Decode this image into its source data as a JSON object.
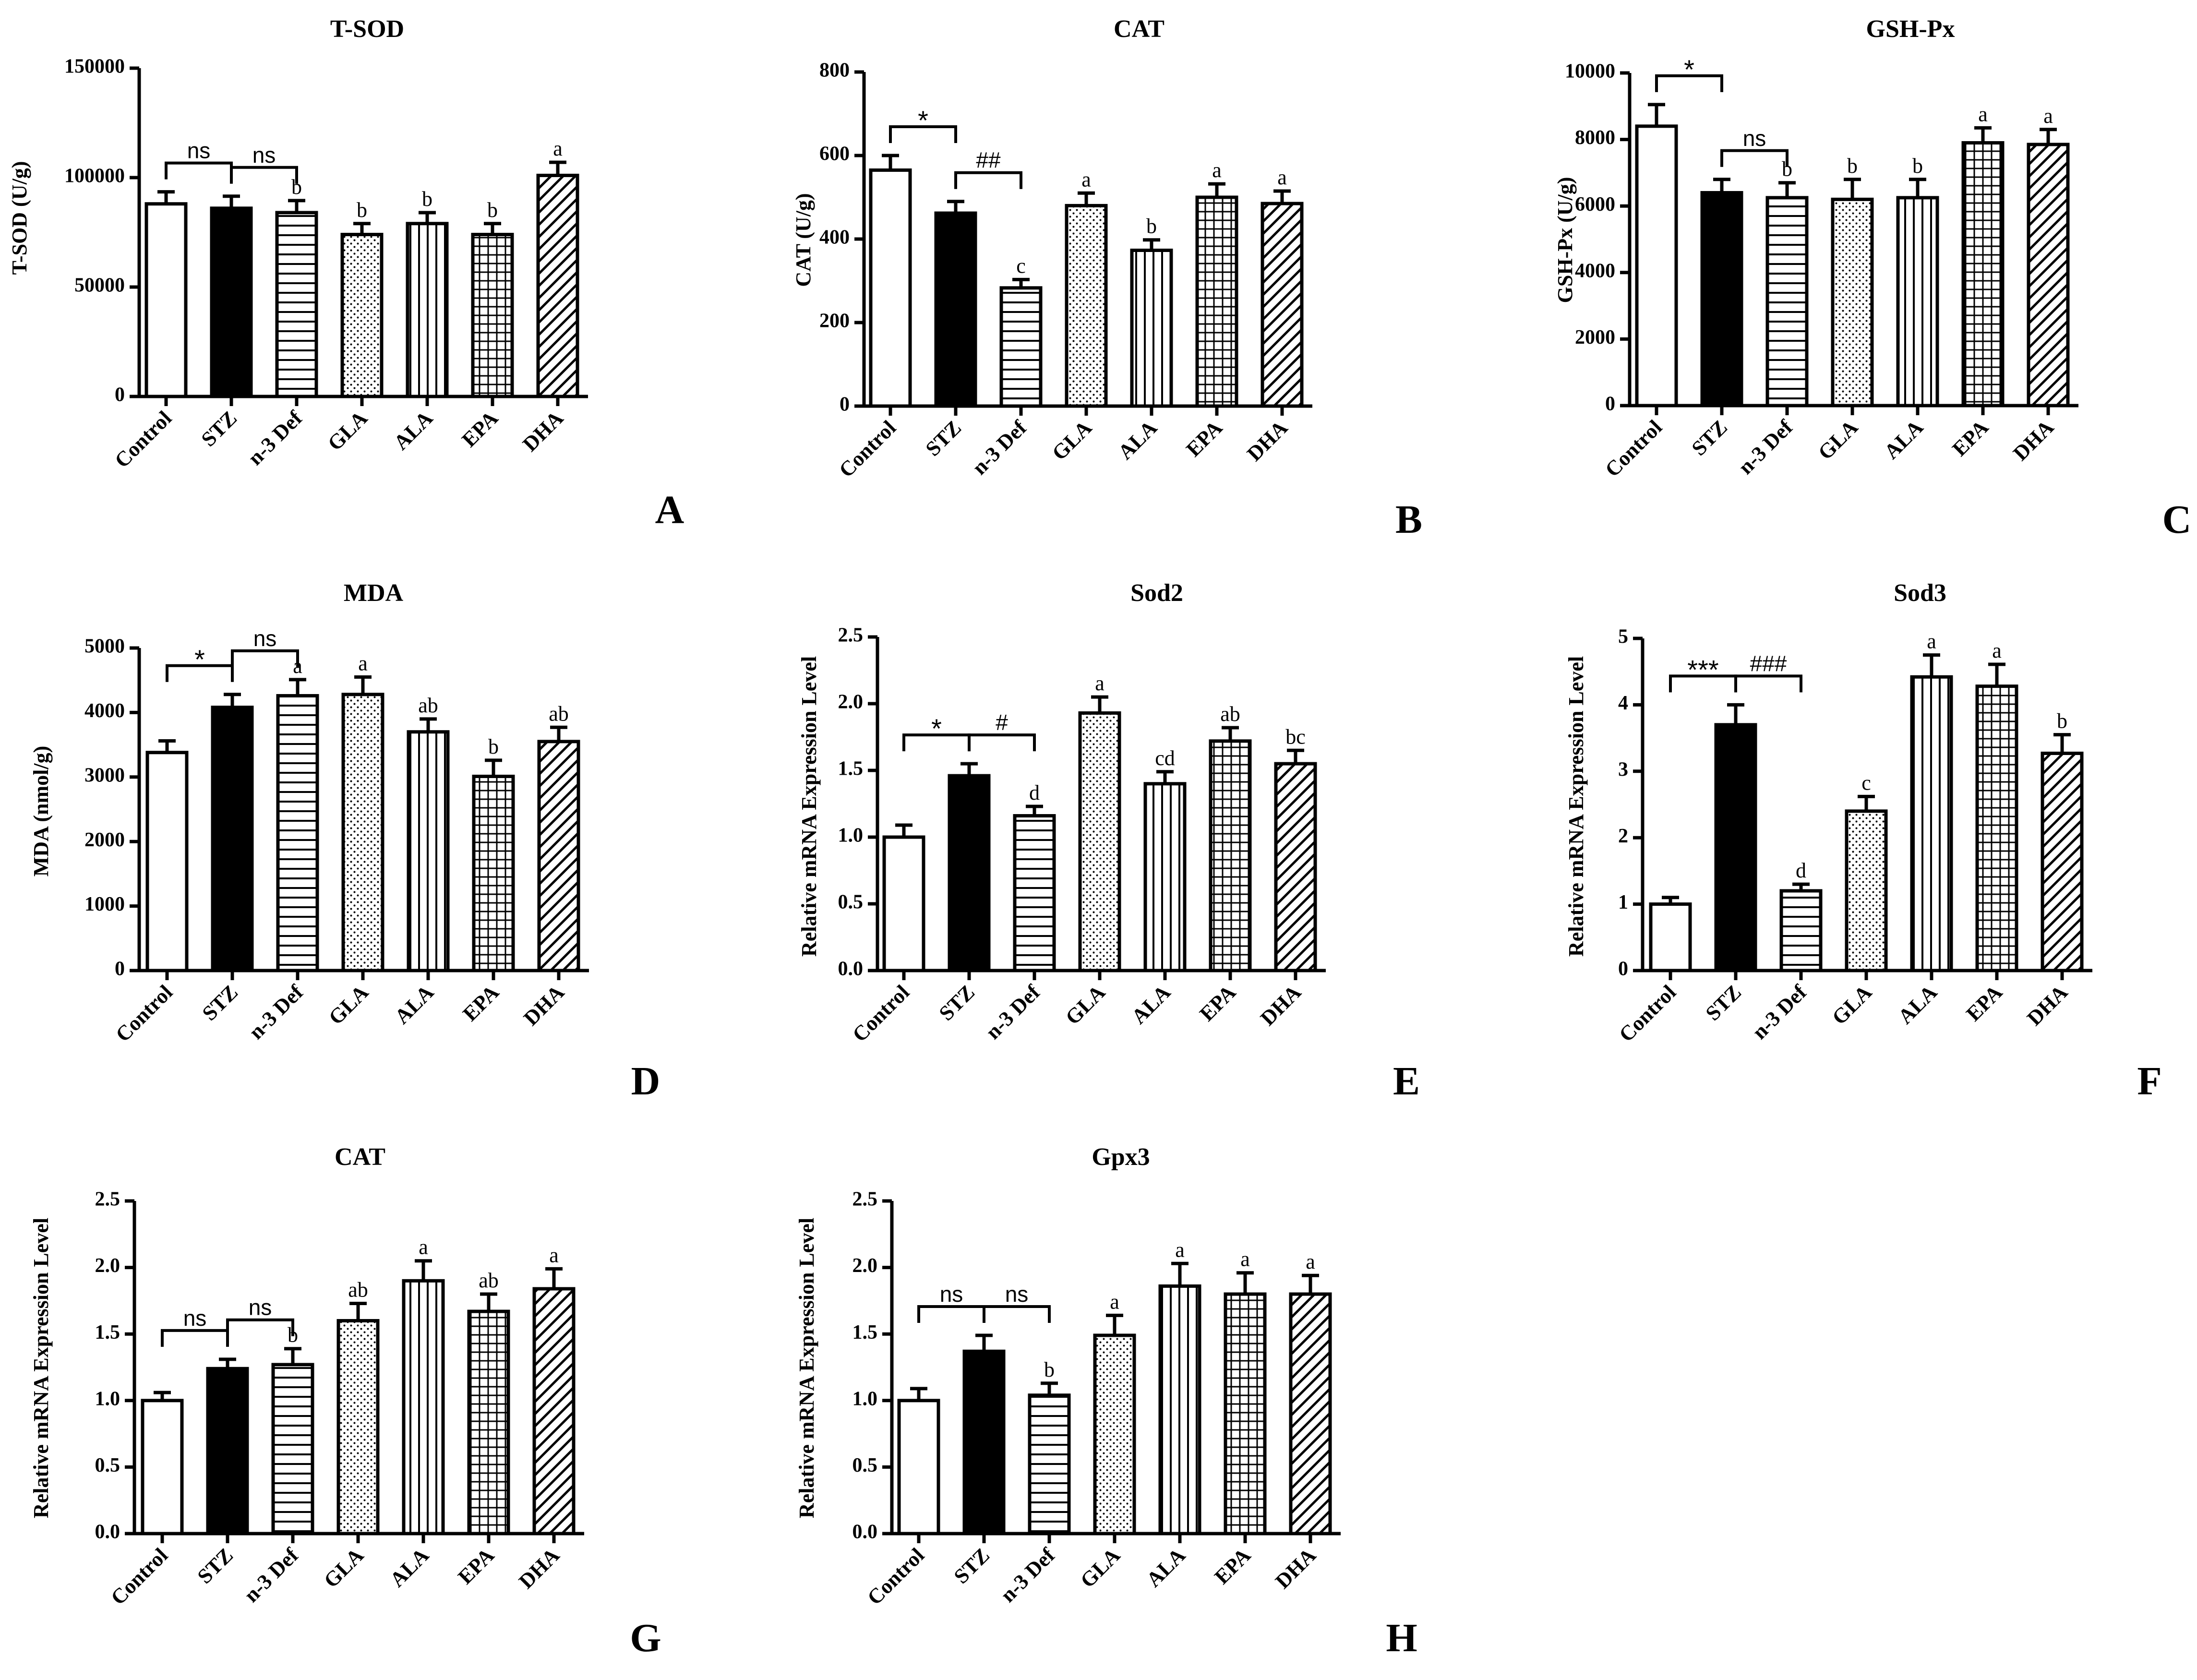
{
  "colors": {
    "ink": "#000000",
    "paper": "#ffffff"
  },
  "chart_data": [
    {
      "panel": "A",
      "title": "T-SOD",
      "type": "bar",
      "ylabel": "T-SOD (U/g)",
      "ylim": [
        0,
        150000
      ],
      "yticks": [
        "0",
        "50000",
        "100000",
        "150000"
      ],
      "categories": [
        "Control",
        "STZ",
        "n-3 Def",
        "GLA",
        "ALA",
        "EPA",
        "DHA"
      ],
      "values": [
        88000,
        86000,
        84000,
        74000,
        79000,
        74000,
        101000
      ],
      "errors": [
        5500,
        5500,
        5500,
        5000,
        5000,
        5000,
        6000
      ],
      "patterns": [
        "none",
        "solid",
        "hlines",
        "dots",
        "vlines",
        "grid",
        "diag"
      ],
      "letters": [
        "",
        "",
        "b",
        "b",
        "b",
        "b",
        "a"
      ],
      "brackets": [
        {
          "from": 0,
          "to": 1,
          "label": "ns"
        },
        {
          "from": 1,
          "to": 2,
          "label": "ns"
        }
      ]
    },
    {
      "panel": "B",
      "title": "CAT",
      "type": "bar",
      "ylabel": "CAT (U/g)",
      "ylim": [
        0,
        800
      ],
      "yticks": [
        "0",
        "200",
        "400",
        "600",
        "800"
      ],
      "categories": [
        "Control",
        "STZ",
        "n-3 Def",
        "GLA",
        "ALA",
        "EPA",
        "DHA"
      ],
      "values": [
        565,
        462,
        283,
        480,
        373,
        500,
        485
      ],
      "errors": [
        35,
        28,
        20,
        30,
        25,
        32,
        30
      ],
      "patterns": [
        "none",
        "solid",
        "hlines",
        "dots",
        "vlines",
        "grid",
        "diag"
      ],
      "letters": [
        "",
        "",
        "c",
        "a",
        "b",
        "a",
        "a"
      ],
      "brackets": [
        {
          "from": 0,
          "to": 1,
          "label": "*"
        },
        {
          "from": 1,
          "to": 2,
          "label": "##"
        }
      ]
    },
    {
      "panel": "C",
      "title": "GSH-Px",
      "type": "bar",
      "ylabel": "GSH-Px (U/g)",
      "ylim": [
        0,
        10000
      ],
      "yticks": [
        "0",
        "2000",
        "4000",
        "6000",
        "8000",
        "10000"
      ],
      "categories": [
        "Control",
        "STZ",
        "n-3 Def",
        "GLA",
        "ALA",
        "EPA",
        "DHA"
      ],
      "values": [
        8400,
        6400,
        6250,
        6200,
        6250,
        7900,
        7850
      ],
      "errors": [
        650,
        400,
        450,
        600,
        550,
        450,
        450
      ],
      "patterns": [
        "none",
        "solid",
        "hlines",
        "dots",
        "vlines",
        "grid",
        "diag"
      ],
      "letters": [
        "",
        "",
        "b",
        "b",
        "b",
        "a",
        "a"
      ],
      "brackets": [
        {
          "from": 0,
          "to": 1,
          "label": "*"
        },
        {
          "from": 1,
          "to": 2,
          "label": "ns"
        }
      ]
    },
    {
      "panel": "D",
      "title": "MDA",
      "type": "bar",
      "ylabel": "MDA (nmol/g)",
      "ylim": [
        0,
        5000
      ],
      "yticks": [
        "0",
        "1000",
        "2000",
        "3000",
        "4000",
        "5000"
      ],
      "categories": [
        "Control",
        "STZ",
        "n-3 Def",
        "GLA",
        "ALA",
        "EPA",
        "DHA"
      ],
      "values": [
        3380,
        4080,
        4260,
        4280,
        3700,
        3010,
        3550
      ],
      "errors": [
        180,
        200,
        250,
        270,
        200,
        250,
        220
      ],
      "patterns": [
        "none",
        "solid",
        "hlines",
        "dots",
        "vlines",
        "grid",
        "diag"
      ],
      "letters": [
        "",
        "",
        "a",
        "a",
        "ab",
        "b",
        "ab"
      ],
      "brackets": [
        {
          "from": 0,
          "to": 1,
          "label": "*"
        },
        {
          "from": 1,
          "to": 2,
          "label": "ns"
        }
      ]
    },
    {
      "panel": "E",
      "title": "Sod2",
      "type": "bar",
      "ylabel": "Relative mRNA Expression Level",
      "ylim": [
        0,
        2.5
      ],
      "yticks": [
        "0.0",
        "0.5",
        "1.0",
        "1.5",
        "2.0",
        "2.5"
      ],
      "categories": [
        "Control",
        "STZ",
        "n-3 Def",
        "GLA",
        "ALA",
        "EPA",
        "DHA"
      ],
      "values": [
        1.0,
        1.46,
        1.16,
        1.93,
        1.4,
        1.72,
        1.55
      ],
      "errors": [
        0.09,
        0.09,
        0.07,
        0.12,
        0.09,
        0.1,
        0.1
      ],
      "patterns": [
        "none",
        "solid",
        "hlines",
        "dots",
        "vlines",
        "grid",
        "diag"
      ],
      "letters": [
        "",
        "",
        "d",
        "a",
        "cd",
        "ab",
        "bc"
      ],
      "brackets": [
        {
          "from": 0,
          "to": 1,
          "label": "*"
        },
        {
          "from": 1,
          "to": 2,
          "label": "#"
        }
      ]
    },
    {
      "panel": "F",
      "title": "Sod3",
      "type": "bar",
      "ylabel": "Relative mRNA Expression Level",
      "ylim": [
        0,
        5
      ],
      "yticks": [
        "0",
        "1",
        "2",
        "3",
        "4",
        "5"
      ],
      "categories": [
        "Control",
        "STZ",
        "n-3 Def",
        "GLA",
        "ALA",
        "EPA",
        "DHA"
      ],
      "values": [
        1.0,
        3.7,
        1.2,
        2.4,
        4.42,
        4.28,
        3.27
      ],
      "errors": [
        0.1,
        0.3,
        0.1,
        0.22,
        0.33,
        0.33,
        0.28
      ],
      "patterns": [
        "none",
        "solid",
        "hlines",
        "dots",
        "vlines",
        "grid",
        "diag"
      ],
      "letters": [
        "",
        "",
        "d",
        "c",
        "a",
        "a",
        "b"
      ],
      "brackets": [
        {
          "from": 0,
          "to": 1,
          "label": "***"
        },
        {
          "from": 1,
          "to": 2,
          "label": "###"
        }
      ]
    },
    {
      "panel": "G",
      "title": "CAT",
      "type": "bar",
      "ylabel": "Relative mRNA Expression Level",
      "ylim": [
        0,
        2.5
      ],
      "yticks": [
        "0.0",
        "0.5",
        "1.0",
        "1.5",
        "2.0",
        "2.5"
      ],
      "categories": [
        "Control",
        "STZ",
        "n-3 Def",
        "GLA",
        "ALA",
        "EPA",
        "DHA"
      ],
      "values": [
        1.0,
        1.24,
        1.27,
        1.6,
        1.9,
        1.67,
        1.84
      ],
      "errors": [
        0.06,
        0.07,
        0.12,
        0.13,
        0.15,
        0.13,
        0.15
      ],
      "patterns": [
        "none",
        "solid",
        "hlines",
        "dots",
        "vlines",
        "grid",
        "diag"
      ],
      "letters": [
        "",
        "",
        "b",
        "ab",
        "a",
        "ab",
        "a"
      ],
      "brackets": [
        {
          "from": 0,
          "to": 1,
          "label": "ns"
        },
        {
          "from": 1,
          "to": 2,
          "label": "ns"
        }
      ]
    },
    {
      "panel": "H",
      "title": "Gpx3",
      "type": "bar",
      "ylabel": "Relative mRNA Expression Level",
      "ylim": [
        0,
        2.5
      ],
      "yticks": [
        "0.0",
        "0.5",
        "1.0",
        "1.5",
        "2.0",
        "2.5"
      ],
      "categories": [
        "Control",
        "STZ",
        "n-3 Def",
        "GLA",
        "ALA",
        "EPA",
        "DHA"
      ],
      "values": [
        1.0,
        1.37,
        1.04,
        1.49,
        1.86,
        1.8,
        1.8
      ],
      "errors": [
        0.09,
        0.12,
        0.09,
        0.15,
        0.17,
        0.16,
        0.14
      ],
      "patterns": [
        "none",
        "solid",
        "hlines",
        "dots",
        "vlines",
        "grid",
        "diag"
      ],
      "letters": [
        "",
        "",
        "b",
        "a",
        "a",
        "a",
        "a"
      ],
      "brackets": [
        {
          "from": 0,
          "to": 1,
          "label": "ns"
        },
        {
          "from": 1,
          "to": 2,
          "label": "ns"
        }
      ]
    }
  ]
}
